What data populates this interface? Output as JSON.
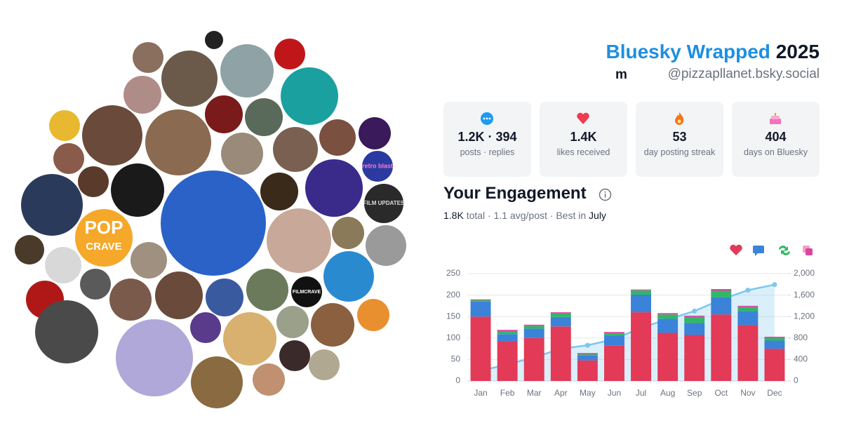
{
  "header": {
    "title_brand": "Bluesky Wrapped",
    "title_year": "2025",
    "display_name": "m",
    "handle": "@pizzapllanet.bsky.social"
  },
  "stats": [
    {
      "value": "1.2K · 394",
      "label": "posts · replies"
    },
    {
      "value": "1.4K",
      "label": "likes received"
    },
    {
      "value": "53",
      "label": "day posting streak"
    },
    {
      "value": "404",
      "label": "days on Bluesky"
    }
  ],
  "engagement": {
    "title": "Your Engagement",
    "summary": [
      "1.8K",
      "total ·",
      "1.1",
      "avg/post · Best in",
      "July"
    ]
  },
  "avatars": {
    "labels": [
      "POP",
      "CRAVE",
      "retro blast",
      "FILM UPDATES",
      "FILMCRAVE"
    ]
  },
  "chart_data": {
    "type": "bar",
    "stacked": true,
    "categories": [
      "Jan",
      "Feb",
      "Mar",
      "Apr",
      "May",
      "Jun",
      "Jul",
      "Aug",
      "Sep",
      "Oct",
      "Nov",
      "Dec"
    ],
    "series": [
      {
        "color": "#e23a57",
        "values": [
          150,
          93,
          100,
          127,
          48,
          82,
          160,
          112,
          107,
          155,
          130,
          75
        ]
      },
      {
        "color": "#3b82d9",
        "values": [
          35,
          16,
          22,
          22,
          11,
          24,
          41,
          33,
          28,
          40,
          33,
          19
        ]
      },
      {
        "color": "#2fb866",
        "values": [
          3,
          6,
          6,
          8,
          3,
          5,
          10,
          10,
          14,
          15,
          9,
          6
        ]
      },
      {
        "color": "#d946a0",
        "values": [
          2,
          4,
          3,
          3,
          3,
          3,
          2,
          3,
          3,
          4,
          3,
          3
        ]
      },
      {
        "type": "line",
        "axis": "y2",
        "color": "#7cc7ef",
        "values": [
          190,
          309,
          440,
          600,
          665,
          779,
          992,
          1150,
          1302,
          1516,
          1691,
          1795
        ]
      }
    ],
    "ylim": [
      0,
      250
    ],
    "yticks": [
      0,
      50,
      100,
      150,
      200,
      250
    ],
    "y2lim": [
      0,
      2000
    ],
    "y2ticks": [
      0,
      400,
      800,
      {
        "value": 1200,
        "label": "1,200"
      },
      {
        "value": 1600,
        "label": "1,600"
      },
      {
        "value": 2000,
        "label": "2,000"
      }
    ],
    "grid": true
  }
}
